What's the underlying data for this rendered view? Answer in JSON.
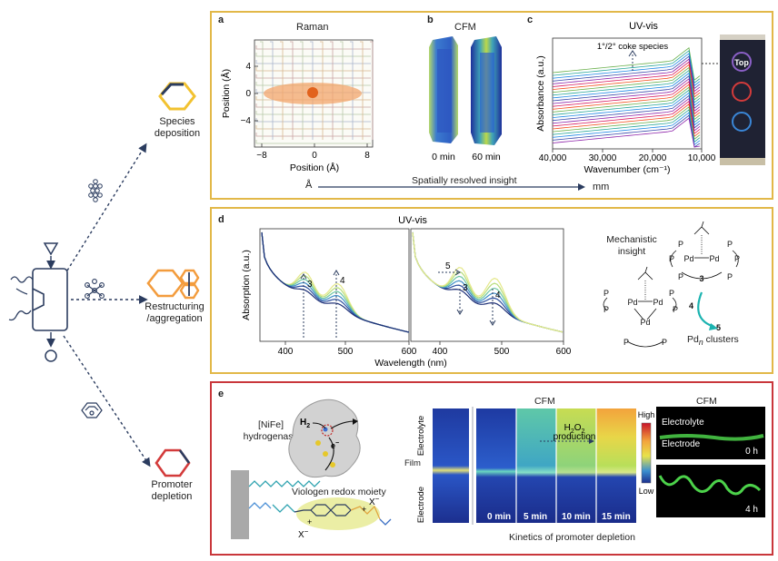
{
  "colors": {
    "panel_border_yellow": "#e2b848",
    "panel_border_red": "#c9373b",
    "arrow_navy": "#2b3c5f",
    "raman_orange": "#f3a56b",
    "deposition_yellow": "#f2c230",
    "restructure_orange": "#f39c3d",
    "promoter_red": "#d33b3b"
  },
  "left": {
    "species_deposition": "Species\ndeposition",
    "restructuring": "Restructuring\n/aggregation",
    "promoter_depletion": "Promoter\ndepletion"
  },
  "panel_a": {
    "letter": "a",
    "title": "Raman",
    "ylabel": "Position (Å)",
    "xlabel": "Position (Å)",
    "xticks": [
      "−8",
      "0",
      "8"
    ],
    "yticks": [
      "4",
      "0",
      "−4"
    ]
  },
  "panel_b": {
    "letter": "b",
    "title": "CFM",
    "time1": "0 min",
    "time2": "60 min"
  },
  "panel_c": {
    "letter": "c",
    "title": "UV-vis",
    "annotation": "1°/2° coke species",
    "ylabel": "Absorbance (a.u.)",
    "xlabel": "Wavenumber (cm⁻¹)",
    "xticks": [
      "40,000",
      "30,000",
      "20,000",
      "10,000"
    ],
    "top_label": "Top"
  },
  "scale": {
    "left": "Å",
    "center": "Spatially resolved insight",
    "right": "mm"
  },
  "panel_d": {
    "letter": "d",
    "title": "UV-vis",
    "ylabel": "Absorption (a.u.)",
    "xlabel": "Wavelength (nm)",
    "xticks_left": [
      "400",
      "500",
      "600"
    ],
    "xticks_right": [
      "400",
      "500",
      "600"
    ],
    "peak3": "3",
    "peak4": "4",
    "peak5": "5",
    "right_peak3": "3",
    "right_peak4": "4",
    "mechanistic": "Mechanistic\ninsight",
    "cmpd3": "3",
    "cmpd4": "4",
    "cmpd5": "5",
    "pd_clusters": "Pd",
    "pd_sub": "n",
    "pd_clusters_suffix": " clusters"
  },
  "panel_e": {
    "letter": "e",
    "enzyme": "[NiFe]\nhydrogenase",
    "h2": "H",
    "h2_sub": "2",
    "electron": "e",
    "viologen": "Viologen redox moiety",
    "x_minus_1": "X",
    "x_minus_2": "X",
    "cfm_title": "CFM",
    "electrolyte": "Electrolyte",
    "film": "Film",
    "electrode": "Electrode",
    "high": "High",
    "low": "Low",
    "times": [
      "0 min",
      "5 min",
      "10 min",
      "15 min"
    ],
    "h2o2": "H",
    "production": "production",
    "kinetics": "Kinetics of promoter depletion",
    "cfm_right_title": "CFM",
    "right_electrolyte": "Electrolyte",
    "right_electrode": "Electrode",
    "time_0h": "0 h",
    "time_4h": "4 h"
  }
}
